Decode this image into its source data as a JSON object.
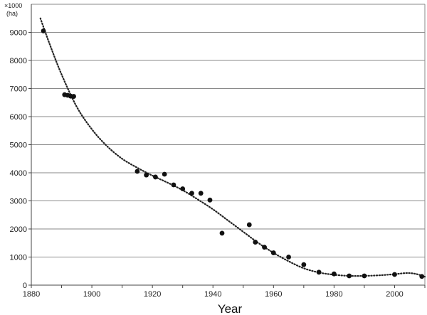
{
  "chart_data": {
    "type": "scatter",
    "xlabel": "Year",
    "ylabel_unit_line1": "×1000",
    "ylabel_unit_line2": "(ha)",
    "xlim": [
      1880,
      2010
    ],
    "ylim": [
      0,
      10000
    ],
    "x_ticks": [
      1880,
      1900,
      1920,
      1940,
      1960,
      1980,
      2000
    ],
    "y_ticks": [
      0,
      1000,
      2000,
      3000,
      4000,
      5000,
      6000,
      7000,
      8000,
      9000
    ],
    "grid": true,
    "points": [
      {
        "x": 1884,
        "y": 9050
      },
      {
        "x": 1891,
        "y": 6780
      },
      {
        "x": 1892,
        "y": 6760
      },
      {
        "x": 1893,
        "y": 6730
      },
      {
        "x": 1894,
        "y": 6720
      },
      {
        "x": 1915,
        "y": 4050
      },
      {
        "x": 1918,
        "y": 3920
      },
      {
        "x": 1921,
        "y": 3850
      },
      {
        "x": 1924,
        "y": 3950
      },
      {
        "x": 1927,
        "y": 3570
      },
      {
        "x": 1930,
        "y": 3430
      },
      {
        "x": 1933,
        "y": 3270
      },
      {
        "x": 1936,
        "y": 3270
      },
      {
        "x": 1939,
        "y": 3030
      },
      {
        "x": 1943,
        "y": 1850
      },
      {
        "x": 1952,
        "y": 2150
      },
      {
        "x": 1954,
        "y": 1530
      },
      {
        "x": 1957,
        "y": 1350
      },
      {
        "x": 1960,
        "y": 1150
      },
      {
        "x": 1965,
        "y": 1000
      },
      {
        "x": 1970,
        "y": 730
      },
      {
        "x": 1975,
        "y": 460
      },
      {
        "x": 1980,
        "y": 400
      },
      {
        "x": 1985,
        "y": 330
      },
      {
        "x": 1990,
        "y": 330
      },
      {
        "x": 2000,
        "y": 380
      },
      {
        "x": 2009,
        "y": 310
      }
    ],
    "trend": [
      {
        "x": 1883,
        "y": 9500
      },
      {
        "x": 1886,
        "y": 8600
      },
      {
        "x": 1890,
        "y": 7500
      },
      {
        "x": 1895,
        "y": 6350
      },
      {
        "x": 1900,
        "y": 5550
      },
      {
        "x": 1905,
        "y": 4950
      },
      {
        "x": 1910,
        "y": 4500
      },
      {
        "x": 1915,
        "y": 4180
      },
      {
        "x": 1920,
        "y": 3900
      },
      {
        "x": 1925,
        "y": 3650
      },
      {
        "x": 1930,
        "y": 3380
      },
      {
        "x": 1935,
        "y": 3050
      },
      {
        "x": 1940,
        "y": 2700
      },
      {
        "x": 1945,
        "y": 2300
      },
      {
        "x": 1950,
        "y": 1900
      },
      {
        "x": 1955,
        "y": 1500
      },
      {
        "x": 1960,
        "y": 1150
      },
      {
        "x": 1965,
        "y": 850
      },
      {
        "x": 1970,
        "y": 600
      },
      {
        "x": 1975,
        "y": 450
      },
      {
        "x": 1980,
        "y": 370
      },
      {
        "x": 1985,
        "y": 330
      },
      {
        "x": 1990,
        "y": 330
      },
      {
        "x": 1995,
        "y": 350
      },
      {
        "x": 2000,
        "y": 390
      },
      {
        "x": 2004,
        "y": 430
      },
      {
        "x": 2007,
        "y": 400
      },
      {
        "x": 2010,
        "y": 300
      }
    ],
    "colors": {
      "point": "#111111",
      "trend": "#222222",
      "grid": "#8a8a8a",
      "axis": "#444444"
    }
  }
}
